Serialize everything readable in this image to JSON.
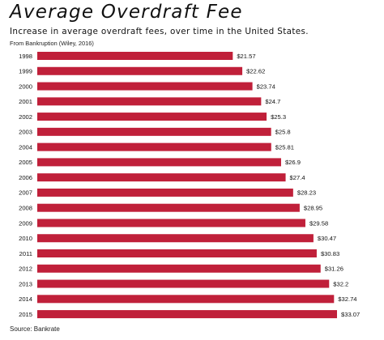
{
  "chart_data": {
    "type": "bar",
    "orientation": "horizontal",
    "title": "Average Overdraft Fee",
    "subtitle": "Increase in average overdraft fees, over time in the United States.",
    "note": "From Bankruption (Wiley, 2016)",
    "source": "Source: Bankrate",
    "categories": [
      "1998",
      "1999",
      "2000",
      "2001",
      "2002",
      "2003",
      "2004",
      "2005",
      "2006",
      "2007",
      "2008",
      "2009",
      "2010",
      "2011",
      "2012",
      "2013",
      "2014",
      "2015"
    ],
    "values": [
      21.57,
      22.62,
      23.74,
      24.7,
      25.3,
      25.8,
      25.81,
      26.9,
      27.4,
      28.23,
      28.95,
      29.58,
      30.47,
      30.83,
      31.26,
      32.2,
      32.74,
      33.07
    ],
    "value_labels": [
      "$21.57",
      "$22.62",
      "$23.74",
      "$24.7",
      "$25.3",
      "$25.8",
      "$25.81",
      "$26.9",
      "$27.4",
      "$28.23",
      "$28.95",
      "$29.58",
      "$30.47",
      "$30.83",
      "$31.26",
      "$32.2",
      "$32.74",
      "$33.07"
    ],
    "xlim": [
      0,
      33.07
    ],
    "grid": false,
    "legend": "none",
    "bar_color": "#c0203a"
  }
}
